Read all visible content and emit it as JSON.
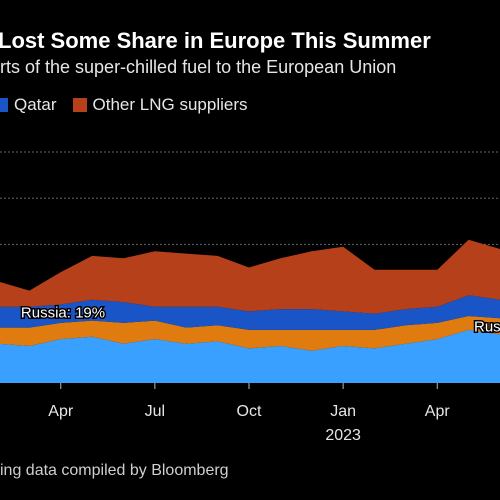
{
  "title": "Lost Some Share in Europe This Summer",
  "subtitle": "rts of the super-chilled fuel to the European Union",
  "source": "ing data compiled by Bloomberg",
  "colors": {
    "russia": "#3aa0ff",
    "qatar": "#1a55c8",
    "other": "#b5401a",
    "us": "#e07b10",
    "grid": "#666666",
    "background": "#000000"
  },
  "chart_data": {
    "type": "area",
    "title": "Lost Some Share in Europe This Summer",
    "subtitle": "rts of the super-chilled fuel to the European Union",
    "y_unit": "share of EU LNG imports (%)",
    "ylim": [
      0,
      100
    ],
    "grid": true,
    "x": [
      "2022-02",
      "2022-03",
      "2022-04",
      "2022-05",
      "2022-06",
      "2022-07",
      "2022-08",
      "2022-09",
      "2022-10",
      "2022-11",
      "2022-12",
      "2023-01",
      "2023-02",
      "2023-03",
      "2023-04",
      "2023-05",
      "2023-06"
    ],
    "xticks": [
      {
        "x": "2022-04",
        "label": "Apr",
        "sub": ""
      },
      {
        "x": "2022-07",
        "label": "Jul",
        "sub": ""
      },
      {
        "x": "2022-10",
        "label": "Oct",
        "sub": ""
      },
      {
        "x": "2023-01",
        "label": "Jan",
        "sub": "2023"
      },
      {
        "x": "2023-04",
        "label": "Apr",
        "sub": ""
      }
    ],
    "series": [
      {
        "name": "Russia",
        "key": "russia",
        "values": [
          17,
          16,
          19,
          20,
          17,
          19,
          17,
          18,
          15,
          16,
          14,
          16,
          15,
          17,
          19,
          23,
          21
        ]
      },
      {
        "name": "",
        "key": "us",
        "values": [
          7,
          8,
          7,
          7,
          9,
          8,
          7,
          7,
          8,
          7,
          9,
          7,
          8,
          8,
          7,
          6,
          7
        ]
      },
      {
        "name": "Qatar",
        "key": "qatar",
        "values": [
          9,
          9,
          8,
          9,
          9,
          6,
          9,
          8,
          8,
          9,
          9,
          8,
          7,
          7,
          7,
          9,
          8
        ]
      },
      {
        "name": "Other LNG suppliers",
        "key": "other",
        "values": [
          11,
          7,
          14,
          19,
          19,
          24,
          23,
          22,
          19,
          22,
          25,
          28,
          19,
          17,
          16,
          24,
          22
        ]
      }
    ],
    "legend": [
      "Qatar",
      "Other LNG suppliers"
    ],
    "legend_position": "top",
    "annotations": [
      {
        "text": "Russia: 19%",
        "x": "2022-05",
        "y": 30
      },
      {
        "text": "Russ",
        "x": "2023-06",
        "y": 24
      }
    ]
  }
}
